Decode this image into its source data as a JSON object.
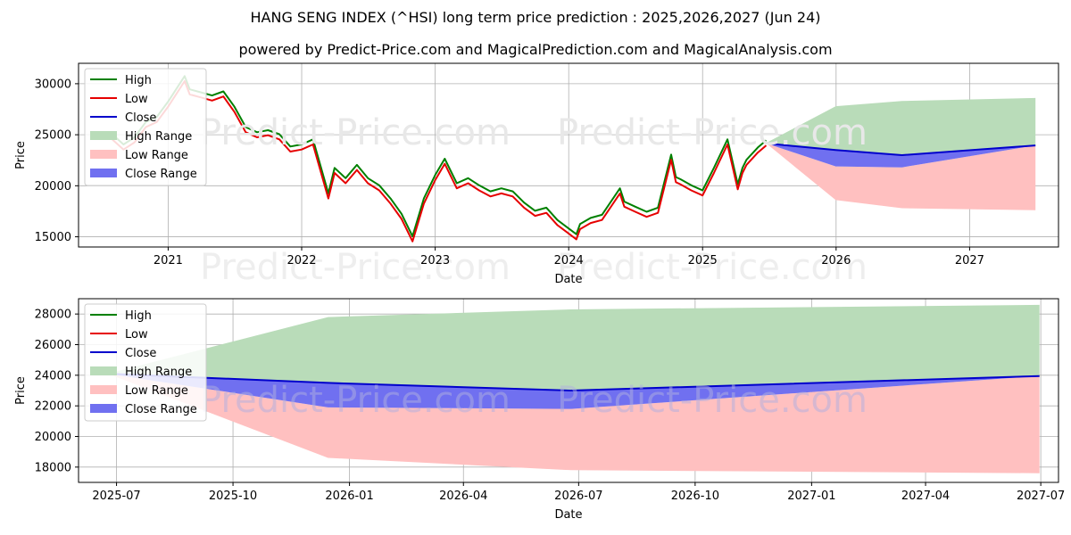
{
  "header": {
    "title": "HANG SENG INDEX (^HSI) long term price prediction : 2025,2026,2027 (Jun 24)",
    "subtitle": "powered by Predict-Price.com and MagicalPrediction.com and MagicalAnalysis.com"
  },
  "watermark": "Predict-Price.com",
  "colors": {
    "high": "#008000",
    "low": "#e60000",
    "close": "#0000cc",
    "high_range": "#b9dcb9",
    "low_range": "#ffc0c0",
    "close_range": "#7070f0"
  },
  "chart_data": [
    {
      "type": "line",
      "xlabel": "Date",
      "ylabel": "Price",
      "xlim": [
        "2020-05-01",
        "2027-09-01"
      ],
      "ylim": [
        14000,
        32000
      ],
      "grid": true,
      "legend": "top-left",
      "x_ticks": [
        "2021",
        "2022",
        "2023",
        "2024",
        "2025",
        "2026",
        "2027"
      ],
      "y_ticks": [
        "15000",
        "20000",
        "25000",
        "30000"
      ],
      "legend_labels": [
        "High",
        "Low",
        "Close",
        "High Range",
        "Low Range",
        "Close Range"
      ],
      "history_close": [
        [
          "2020-08-01",
          24800
        ],
        [
          "2020-09-01",
          23800
        ],
        [
          "2020-10-01",
          24500
        ],
        [
          "2020-11-01",
          26000
        ],
        [
          "2020-12-01",
          26500
        ],
        [
          "2021-01-01",
          28000
        ],
        [
          "2021-02-15",
          30500
        ],
        [
          "2021-03-01",
          29200
        ],
        [
          "2021-04-01",
          28900
        ],
        [
          "2021-05-01",
          28600
        ],
        [
          "2021-06-01",
          29000
        ],
        [
          "2021-07-01",
          27500
        ],
        [
          "2021-08-01",
          25500
        ],
        [
          "2021-09-01",
          25000
        ],
        [
          "2021-10-01",
          25200
        ],
        [
          "2021-11-01",
          24800
        ],
        [
          "2021-12-01",
          23600
        ],
        [
          "2022-01-01",
          23800
        ],
        [
          "2022-02-01",
          24300
        ],
        [
          "2022-03-15",
          19000
        ],
        [
          "2022-04-01",
          21500
        ],
        [
          "2022-05-01",
          20500
        ],
        [
          "2022-06-01",
          21800
        ],
        [
          "2022-07-01",
          20500
        ],
        [
          "2022-08-01",
          19800
        ],
        [
          "2022-09-01",
          18500
        ],
        [
          "2022-10-01",
          17000
        ],
        [
          "2022-10-31",
          14800
        ],
        [
          "2022-12-01",
          18500
        ],
        [
          "2023-01-01",
          20800
        ],
        [
          "2023-01-27",
          22400
        ],
        [
          "2023-03-01",
          20000
        ],
        [
          "2023-04-01",
          20500
        ],
        [
          "2023-05-01",
          19800
        ],
        [
          "2023-06-01",
          19200
        ],
        [
          "2023-07-01",
          19500
        ],
        [
          "2023-08-01",
          19200
        ],
        [
          "2023-09-01",
          18100
        ],
        [
          "2023-10-01",
          17300
        ],
        [
          "2023-11-01",
          17600
        ],
        [
          "2023-12-01",
          16400
        ],
        [
          "2024-01-22",
          15000
        ],
        [
          "2024-02-01",
          16000
        ],
        [
          "2024-03-01",
          16600
        ],
        [
          "2024-04-01",
          16900
        ],
        [
          "2024-05-20",
          19500
        ],
        [
          "2024-06-01",
          18200
        ],
        [
          "2024-07-01",
          17700
        ],
        [
          "2024-08-01",
          17200
        ],
        [
          "2024-09-01",
          17600
        ],
        [
          "2024-10-07",
          22800
        ],
        [
          "2024-10-20",
          20600
        ],
        [
          "2024-11-01",
          20400
        ],
        [
          "2024-12-01",
          19800
        ],
        [
          "2025-01-01",
          19300
        ],
        [
          "2025-02-01",
          21500
        ],
        [
          "2025-03-10",
          24300
        ],
        [
          "2025-04-07",
          19900
        ],
        [
          "2025-04-20",
          21500
        ],
        [
          "2025-05-01",
          22300
        ],
        [
          "2025-06-01",
          23500
        ],
        [
          "2025-06-24",
          24200
        ]
      ],
      "forecast": {
        "dates": [
          "2025-06-24",
          "2025-12-31",
          "2026-06-30",
          "2027-06-30"
        ],
        "close": [
          24150,
          23500,
          23000,
          23950
        ],
        "high_upper": [
          24200,
          27800,
          28300,
          28600
        ],
        "close_upper": [
          24150,
          23500,
          23000,
          23950
        ],
        "close_lower": [
          24150,
          21900,
          21800,
          23950
        ],
        "low_lower": [
          24150,
          18600,
          17800,
          17600
        ]
      }
    },
    {
      "type": "area",
      "xlabel": "Date",
      "ylabel": "Price",
      "xlim": [
        "2025-06-01",
        "2027-07-15"
      ],
      "ylim": [
        17000,
        29000
      ],
      "grid": true,
      "legend": "top-left",
      "x_ticks": [
        "2025-07",
        "2025-10",
        "2026-01",
        "2026-04",
        "2026-07",
        "2026-10",
        "2027-01",
        "2027-04",
        "2027-07"
      ],
      "y_ticks": [
        "18000",
        "20000",
        "22000",
        "24000",
        "26000",
        "28000"
      ],
      "legend_labels": [
        "High",
        "Low",
        "Close",
        "High Range",
        "Low Range",
        "Close Range"
      ],
      "dates": [
        "2025-06-24",
        "2025-12-15",
        "2026-06-25",
        "2027-06-30"
      ],
      "close": [
        24100,
        23500,
        23000,
        23950
      ],
      "high_upper": [
        24100,
        27800,
        28300,
        28600
      ],
      "close_upper": [
        24100,
        23500,
        23000,
        23950
      ],
      "close_lower": [
        24100,
        21900,
        21800,
        23950
      ],
      "low_lower": [
        24100,
        18600,
        17800,
        17600
      ]
    }
  ]
}
